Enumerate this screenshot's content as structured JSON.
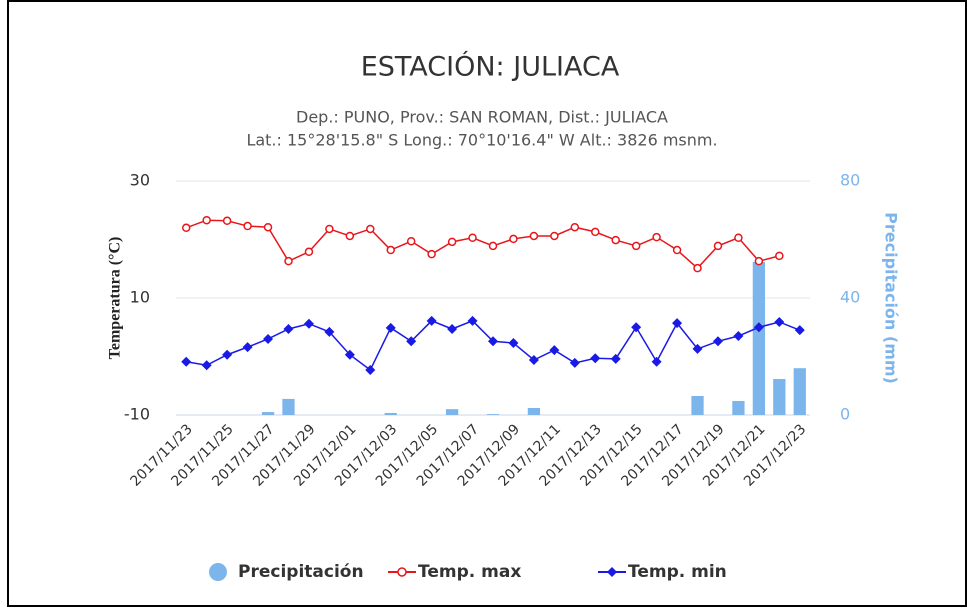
{
  "chart_data": {
    "type": "combo",
    "title": "ESTACIÓN: JULIACA",
    "subtitle": [
      "Dep.: PUNO, Prov.: SAN ROMAN, Dist.: JULIACA",
      "Lat.: 15°28'15.8\" S Long.: 70°10'16.4\" W Alt.: 3826 msnm."
    ],
    "ylabel": "Temperatura (°C)",
    "y2label": "Precipitación (mm)",
    "categories": [
      "2017/11/23",
      null,
      "2017/11/25",
      null,
      "2017/11/27",
      null,
      "2017/11/29",
      null,
      "2017/12/01",
      null,
      "2017/12/03",
      null,
      "2017/12/05",
      null,
      "2017/12/07",
      null,
      "2017/12/09",
      null,
      "2017/12/11",
      null,
      "2017/12/13",
      null,
      "2017/12/15",
      null,
      "2017/12/17",
      null,
      "2017/12/19",
      null,
      "2017/12/21",
      null,
      "2017/12/23"
    ],
    "ylim": [
      -10,
      30
    ],
    "yticks": [
      -10,
      10,
      30
    ],
    "y2lim": [
      0,
      80
    ],
    "y2ticks": [
      0,
      40,
      80
    ],
    "grid": true,
    "legend": "bottom",
    "series": [
      {
        "name": "Precipitación",
        "type": "bar",
        "axis": "y2",
        "color": "#7cb5ec",
        "values": [
          0,
          0,
          0,
          0,
          1,
          5.5,
          0,
          0,
          0,
          0,
          0.7,
          0,
          0,
          2,
          0,
          0.3,
          0,
          2.4,
          0,
          0,
          0,
          0,
          0,
          0,
          0,
          6.5,
          0,
          4.8,
          52.3,
          12.3,
          16
        ]
      },
      {
        "name": "Temp. max",
        "type": "line",
        "marker": "circle",
        "color": "#e8161b",
        "values": [
          22.0,
          23.3,
          23.2,
          22.3,
          22.1,
          16.3,
          17.9,
          21.8,
          20.6,
          21.8,
          18.2,
          19.7,
          17.5,
          19.6,
          20.3,
          18.9,
          20.1,
          20.6,
          20.6,
          22.1,
          21.3,
          19.9,
          18.9,
          20.4,
          18.2,
          15.1,
          18.9,
          20.3,
          16.3,
          17.2,
          null
        ]
      },
      {
        "name": "Temp. min",
        "type": "line",
        "marker": "diamond",
        "color": "#1a1ae6",
        "values": [
          -0.9,
          -1.5,
          0.3,
          1.6,
          3.0,
          4.7,
          5.6,
          4.2,
          0.3,
          -2.3,
          4.9,
          2.6,
          6.1,
          4.7,
          6.1,
          2.6,
          2.3,
          -0.6,
          1.1,
          -1.1,
          -0.3,
          -0.4,
          5.0,
          -0.9,
          5.7,
          1.3,
          2.6,
          3.5,
          5.0,
          5.9,
          4.5
        ]
      }
    ]
  }
}
